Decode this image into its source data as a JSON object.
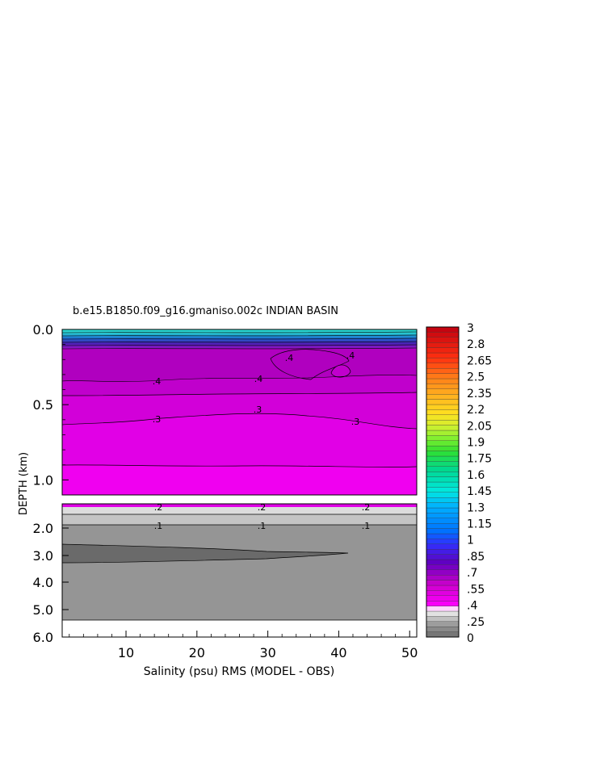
{
  "chart_data": {
    "type": "heatmap",
    "title": "b.e15.B1850.f09_g16.gmaniso.002c INDIAN BASIN",
    "xlabel": "Salinity (psu) RMS (MODEL - OBS)",
    "ylabel": "DEPTH (km)",
    "xlim": [
      1,
      51
    ],
    "x_ticks": [
      "10",
      "20",
      "30",
      "40",
      "50"
    ],
    "upper_panel": {
      "ylim": [
        0.0,
        1.1
      ],
      "y_ticks": [
        "0.0",
        "0.5",
        "1.0"
      ],
      "contours": [
        {
          "level": ".4",
          "depth_km": 0.3
        },
        {
          "level": ".3",
          "depth_km": 0.6
        },
        {
          "level": ".3",
          "depth_km": 0.9
        }
      ],
      "contour_labels": [
        ".4",
        ".4",
        ".4",
        ".3",
        ".3"
      ]
    },
    "lower_panel": {
      "ylim": [
        1.1,
        6.0
      ],
      "y_ticks": [
        "2.0",
        "3.0",
        "4.0",
        "5.0",
        "6.0"
      ],
      "contours": [
        {
          "level": ".2",
          "depth_km": 1.3
        },
        {
          "level": ".1",
          "depth_km": 1.9
        }
      ],
      "contour_labels": [
        ".2",
        ".2",
        ".2",
        ".1",
        ".1",
        ".1"
      ]
    },
    "colorbar": {
      "labels": [
        "3",
        "2.8",
        "2.65",
        "2.5",
        "2.35",
        "2.2",
        "2.05",
        "1.9",
        "1.75",
        "1.6",
        "1.45",
        "1.3",
        "1.15",
        "1",
        ".85",
        ".7",
        ".55",
        ".4",
        ".25",
        "0"
      ]
    }
  }
}
